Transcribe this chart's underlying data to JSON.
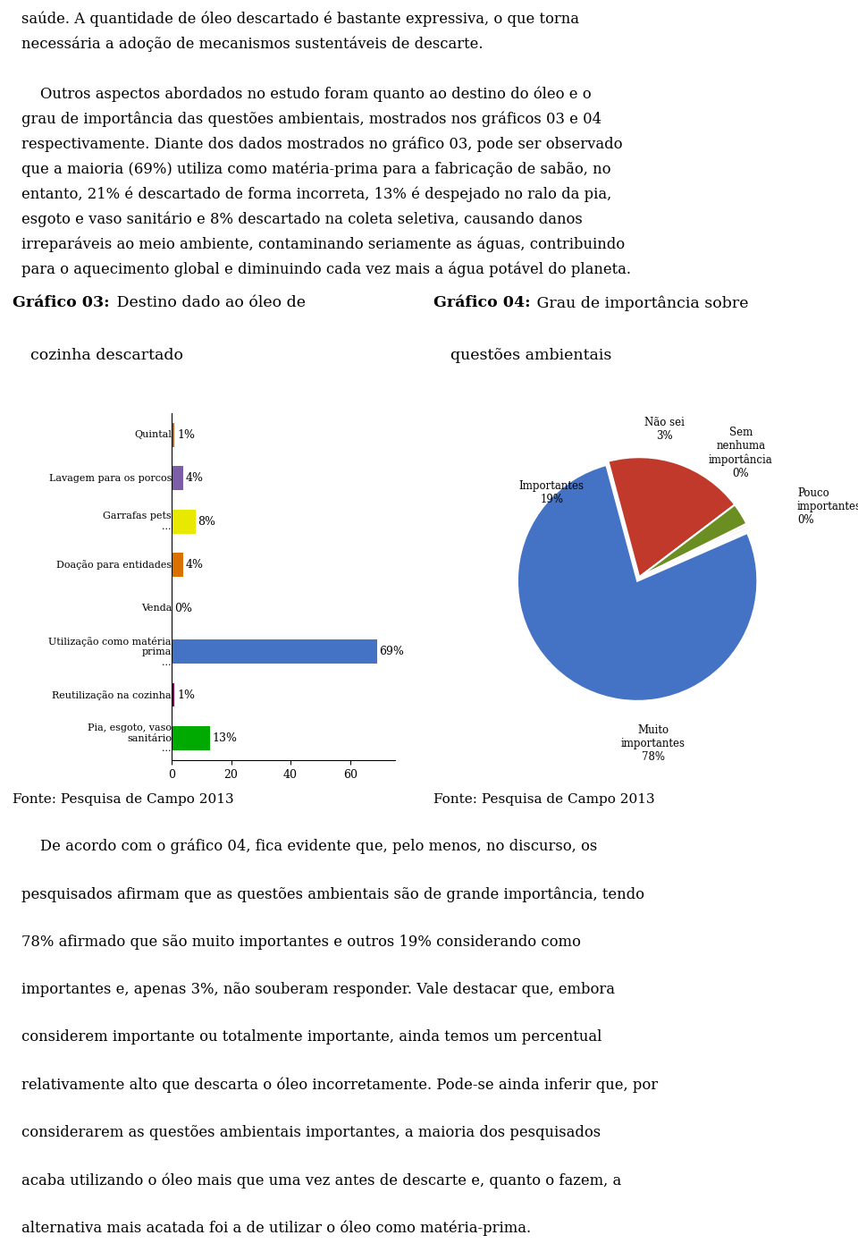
{
  "text_top": [
    "saúde. A quantidade de óleo descartado é bastante expressiva, o que torna",
    "necessária a adoção de mecanismos sustentáveis de descarte.",
    "",
    "    Outros aspectos abordados no estudo foram quanto ao destino do óleo e o",
    "grau de importância das questões ambientais, mostrados nos gráficos 03 e 04",
    "respectivamente. Diante dos dados mostrados no gráfico 03, pode ser observado",
    "que a maioria (69%) utiliza como matéria-prima para a fabricação de sabão, no",
    "entanto, 21% é descartado de forma incorreta, 13% é despejado no ralo da pia,",
    "esgoto e vaso sanitário e 8% descartado na coleta seletiva, causando danos",
    "irreparáveis ao meio ambiente, contaminando seriamente as águas, contribuindo",
    "para o aquecimento global e diminuindo cada vez mais a água potável do planeta."
  ],
  "bar_categories": [
    "Quintal",
    "Lavagem para os porcos",
    "Garrafas pets\n...",
    "Doação para entidades",
    "Venda",
    "Utilização como matéria\nprima\n...",
    "Reutilização na cozinha",
    "Pia, esgoto, vaso\nsanitário\n..."
  ],
  "bar_values": [
    1,
    4,
    8,
    4,
    0,
    69,
    1,
    13
  ],
  "bar_colors": [
    "#c0622a",
    "#7b5ea7",
    "#e8e800",
    "#d97000",
    "#cc0000",
    "#4472c4",
    "#8B0050",
    "#00aa00"
  ],
  "pie_values": [
    19,
    3,
    0.4,
    0.4,
    78
  ],
  "pie_colors": [
    "#c0392b",
    "#6b8e23",
    "#f0f0f0",
    "#f0f0f0",
    "#4472c4"
  ],
  "pie_explode": [
    0,
    0,
    0,
    0,
    0.03
  ],
  "fonte_text": "Fonte: Pesquisa de Campo 2013",
  "text_bottom": [
    "    De acordo com o gráfico 04, fica evidente que, pelo menos, no discurso, os",
    "pesquisados afirmam que as questões ambientais são de grande importância, tendo",
    "78% afirmado que são muito importantes e outros 19% considerando como",
    "importantes e, apenas 3%, não souberam responder. Vale destacar que, embora",
    "considerem importante ou totalmente importante, ainda temos um percentual",
    "relativamente alto que descarta o óleo incorretamente. Pode-se ainda inferir que, por",
    "considerarem as questões ambientais importantes, a maioria dos pesquisados",
    "acaba utilizando o óleo mais que uma vez antes de descarte e, quanto o fazem, a",
    "alternativa mais acatada foi a de utilizar o óleo como matéria-prima."
  ]
}
